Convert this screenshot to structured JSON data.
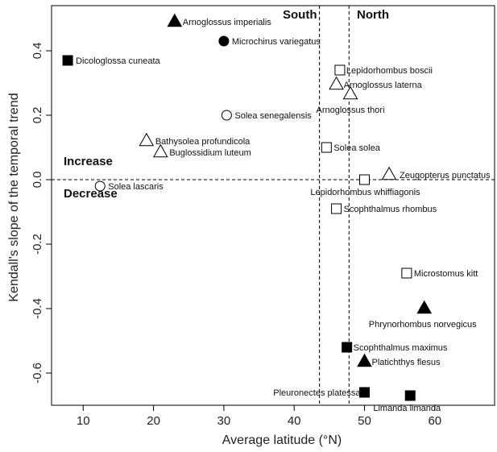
{
  "chart_data": {
    "type": "scatter",
    "title": "",
    "xlabel": "Average latitude (°N)",
    "ylabel": "Kendall's slope of the temporal trend",
    "xlim": [
      5.5,
      68.5
    ],
    "ylim": [
      -0.7,
      0.54
    ],
    "x_ticks": [
      10,
      20,
      30,
      40,
      50,
      60
    ],
    "y_ticks": [
      0.4,
      0.2,
      0.0,
      -0.2,
      -0.4,
      -0.6
    ],
    "y_tick_labels": [
      "0.4",
      "0.2",
      "0.0",
      "-0.2",
      "-0.4",
      "-0.6"
    ],
    "grid": false,
    "reference_lines": {
      "horizontal_y": 0.0,
      "vertical_x": [
        43.6,
        47.8
      ]
    },
    "region_labels": {
      "south": "South",
      "north": "North",
      "increase": "Increase",
      "decrease": "Decrease"
    },
    "marker_colors": {
      "filled": "#000000",
      "hollow": "#ffffff",
      "stroke": "#000000"
    },
    "points": [
      {
        "name": "Arnoglossus imperialis",
        "x": 23,
        "y": 0.49,
        "marker": "triangle",
        "filled": true
      },
      {
        "name": "Microchirus variegatus",
        "x": 30,
        "y": 0.43,
        "marker": "circle",
        "filled": true
      },
      {
        "name": "Dicologlossa cuneata",
        "x": 7.8,
        "y": 0.37,
        "marker": "square",
        "filled": true
      },
      {
        "name": "Lepidorhombus boscii",
        "x": 46.5,
        "y": 0.34,
        "marker": "square",
        "filled": false
      },
      {
        "name": "Arnoglossus laterna",
        "x": 46,
        "y": 0.295,
        "marker": "triangle",
        "filled": false
      },
      {
        "name": "Arnoglossus thori",
        "x": 48,
        "y": 0.265,
        "marker": "triangle",
        "filled": false
      },
      {
        "name": "Solea senegalensis",
        "x": 30.4,
        "y": 0.2,
        "marker": "circle",
        "filled": false
      },
      {
        "name": "Bathysolea profundicola",
        "x": 19,
        "y": 0.12,
        "marker": "triangle",
        "filled": false
      },
      {
        "name": "Buglossidium luteum",
        "x": 21,
        "y": 0.085,
        "marker": "triangle",
        "filled": false
      },
      {
        "name": "Solea solea",
        "x": 44.6,
        "y": 0.1,
        "marker": "square",
        "filled": false
      },
      {
        "name": "Zeugopterus punctatus",
        "x": 53.5,
        "y": 0.015,
        "marker": "triangle",
        "filled": false
      },
      {
        "name": "Lepidorhombus whiffiagonis",
        "x": 50,
        "y": 0.0,
        "marker": "square",
        "filled": false
      },
      {
        "name": "Solea lascaris",
        "x": 12.4,
        "y": -0.02,
        "marker": "circle",
        "filled": false
      },
      {
        "name": "Scophthalmus rhombus",
        "x": 46,
        "y": -0.09,
        "marker": "square",
        "filled": false
      },
      {
        "name": "Microstomus kitt",
        "x": 56,
        "y": -0.29,
        "marker": "square",
        "filled": false
      },
      {
        "name": "Phrynorhombus norvegicus",
        "x": 58.5,
        "y": -0.4,
        "marker": "triangle",
        "filled": true
      },
      {
        "name": "Scophthalmus maximus",
        "x": 47.5,
        "y": -0.52,
        "marker": "square",
        "filled": true
      },
      {
        "name": "Platichthys flesus",
        "x": 50,
        "y": -0.565,
        "marker": "triangle",
        "filled": true
      },
      {
        "name": "Pleuronectes platessa",
        "x": 50,
        "y": -0.66,
        "marker": "square",
        "filled": true
      },
      {
        "name": "Limanda limanda",
        "x": 56.5,
        "y": -0.67,
        "marker": "square",
        "filled": true
      }
    ]
  }
}
